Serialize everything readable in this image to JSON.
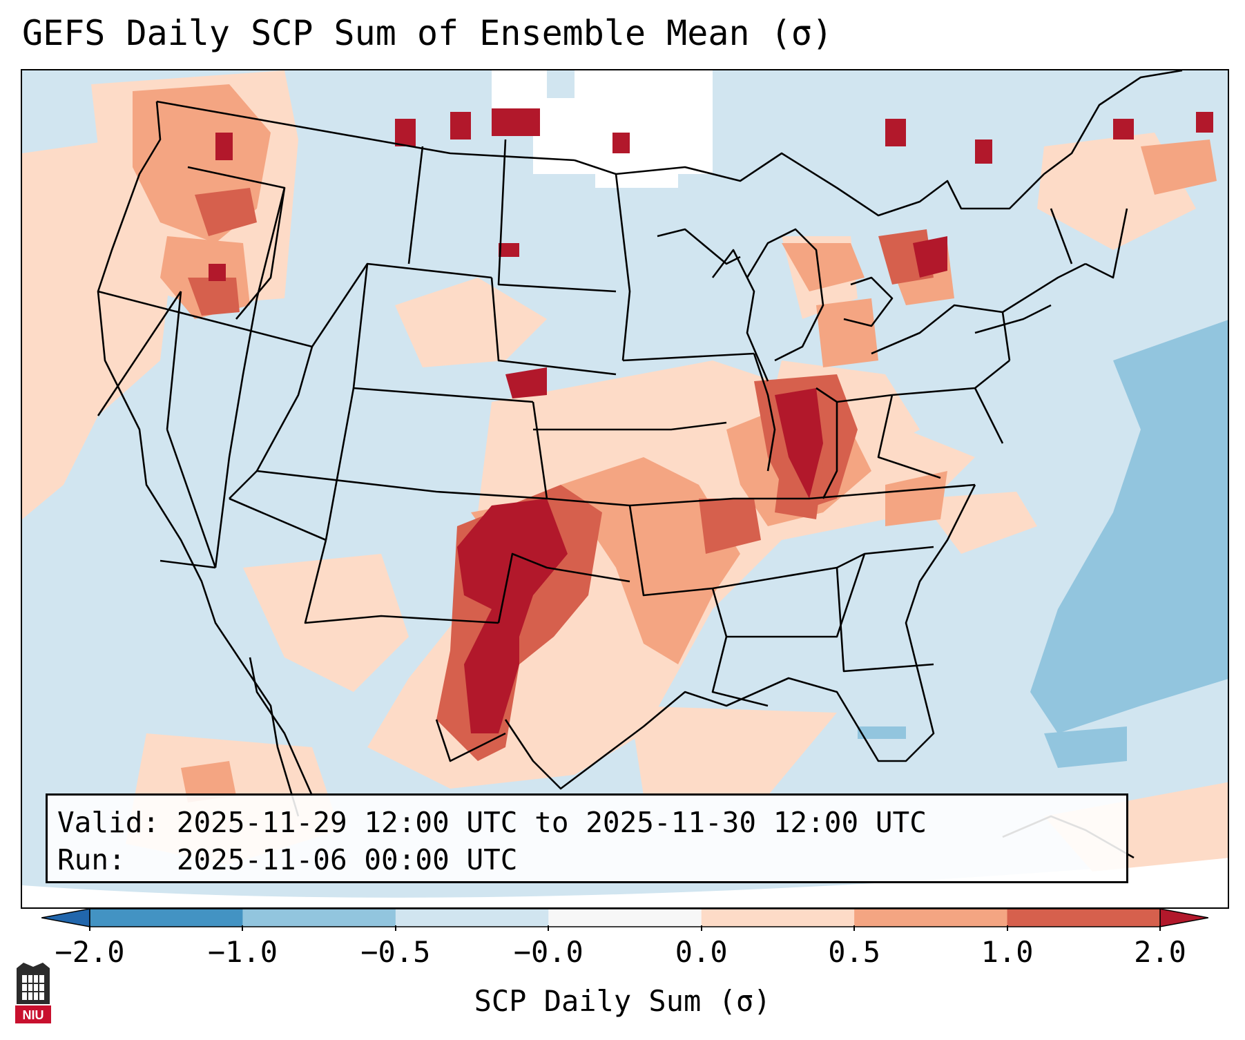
{
  "title": "GEFS Daily SCP Sum of Ensemble Mean (σ)",
  "info": {
    "valid_label": "Valid:",
    "valid_value": "2025-11-29 12:00 UTC to 2025-11-30 12:00 UTC",
    "run_label": "Run:",
    "run_value": "2025-11-06 00:00 UTC"
  },
  "colorbar": {
    "label": "SCP Daily Sum (σ)",
    "ticks": [
      "−2.0",
      "−1.0",
      "−0.5",
      "−0.0",
      "0.0",
      "0.5",
      "1.0",
      "2.0"
    ],
    "colors": [
      "#4393c3",
      "#92c5de",
      "#d1e5f0",
      "#f7f7f7",
      "#fddbc7",
      "#f4a582",
      "#d6604d",
      "#b2182b"
    ],
    "under_color": "#2166ac",
    "over_color": "#b2182b"
  },
  "logo": {
    "text": "NIU",
    "icon": "niu-logo-icon"
  },
  "map": {
    "region": "Continental United States",
    "max_color": "#b2182b",
    "high_color": "#d6604d",
    "mid_color": "#f4a582",
    "low_color": "#fddbc7",
    "base_color": "#d1e5f0",
    "neg_color": "#92c5de"
  }
}
